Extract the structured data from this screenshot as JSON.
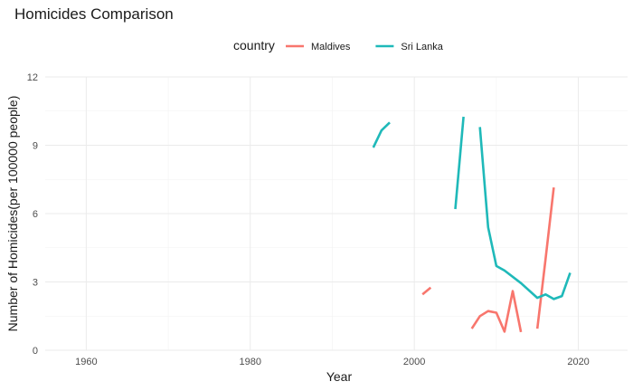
{
  "chart_data": {
    "type": "line",
    "title": "Homicides Comparison",
    "xlabel": "Year",
    "ylabel": "Number of Homicides(per 100000 people)",
    "xlim": [
      1955,
      2026
    ],
    "ylim": [
      0,
      12
    ],
    "x_ticks": [
      1960,
      1980,
      2000,
      2020
    ],
    "y_ticks": [
      0,
      3,
      6,
      9,
      12
    ],
    "grid": true,
    "legend": {
      "title": "country",
      "position": "top"
    },
    "series": [
      {
        "name": "Maldives",
        "color": "#F8766D",
        "segments": [
          [
            [
              2001,
              2.45
            ],
            [
              2002,
              2.75
            ]
          ],
          [
            [
              2007,
              0.95
            ],
            [
              2008,
              1.5
            ],
            [
              2009,
              1.72
            ],
            [
              2010,
              1.65
            ],
            [
              2011,
              0.82
            ],
            [
              2012,
              2.6
            ],
            [
              2013,
              0.8
            ]
          ],
          [
            [
              2015,
              0.95
            ],
            [
              2016,
              4.0
            ],
            [
              2017,
              7.15
            ]
          ]
        ]
      },
      {
        "name": "Sri Lanka",
        "color": "#1FB9B9",
        "segments": [
          [
            [
              1995,
              8.9
            ],
            [
              1996,
              9.65
            ],
            [
              1997,
              10.0
            ]
          ],
          [
            [
              2005,
              6.2
            ],
            [
              2006,
              10.25
            ]
          ],
          [
            [
              2008,
              9.8
            ],
            [
              2009,
              5.4
            ],
            [
              2010,
              3.7
            ],
            [
              2011,
              3.5
            ],
            [
              2013,
              2.95
            ],
            [
              2015,
              2.3
            ],
            [
              2016,
              2.45
            ],
            [
              2017,
              2.25
            ],
            [
              2018,
              2.38
            ],
            [
              2019,
              3.4
            ]
          ]
        ]
      }
    ]
  }
}
